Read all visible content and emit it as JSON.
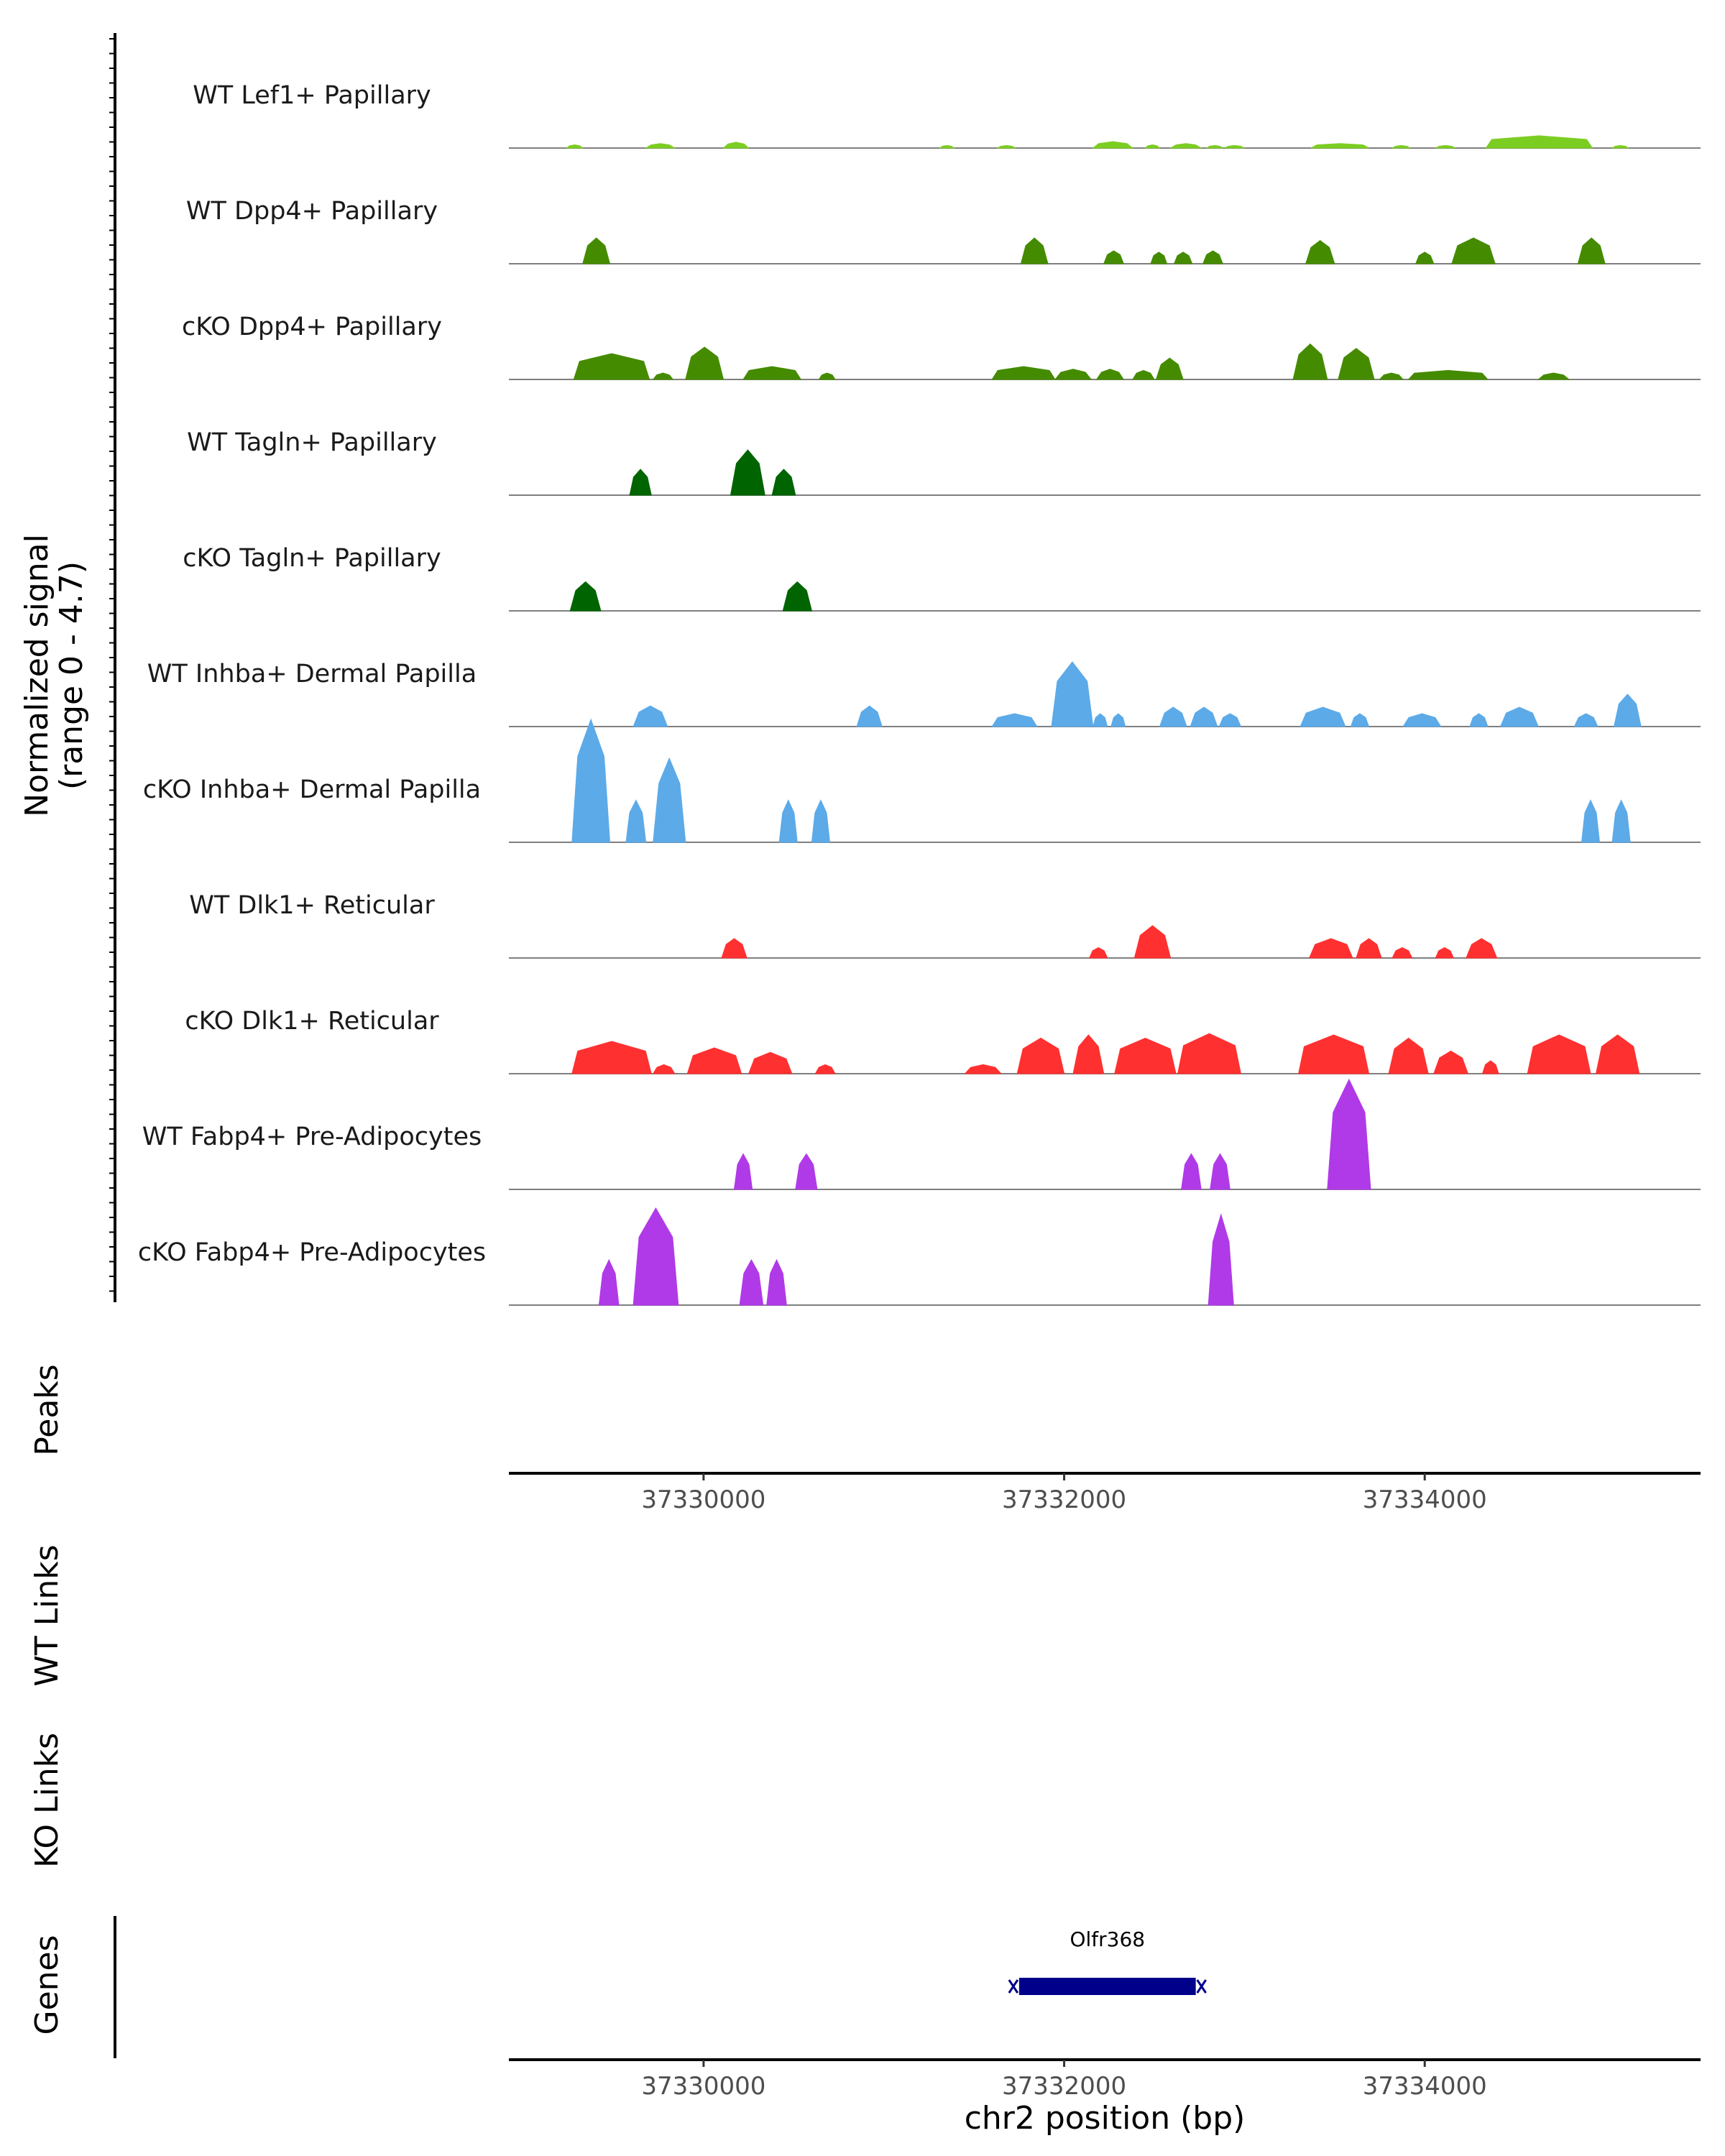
{
  "chart_data": {
    "type": "area",
    "title": "",
    "xlabel": "chr2 position (bp)",
    "ylabel_line1": "Normalized signal",
    "ylabel_line2": "(range 0 - 4.7)",
    "ylim": [
      0,
      4.7
    ],
    "xlim": [
      37328920,
      37335530
    ],
    "xticks": [
      37330000,
      37332000,
      37334000
    ],
    "xtick_labels": [
      "37330000",
      "37332000",
      "37334000"
    ],
    "panel_labels": {
      "peaks": "Peaks",
      "wt_links": "WT Links",
      "ko_links": "KO Links",
      "genes": "Genes"
    },
    "genes": [
      {
        "name": "Olfr368",
        "start": 37331750,
        "end": 37332730,
        "color": "#00008b"
      }
    ],
    "colors": {
      "lef1": "#7ccd22",
      "dpp4": "#458b00",
      "tagln": "#006400",
      "inhba": "#5caae8",
      "dlk1": "#ff3030",
      "fabp4": "#b03ae8"
    },
    "tracks": [
      {
        "name": "WT Lef1+ Papillary",
        "color_key": "lef1",
        "peaks": [
          [
            37329240,
            37329330,
            0.05
          ],
          [
            37329680,
            37329840,
            0.07
          ],
          [
            37330110,
            37330250,
            0.09
          ],
          [
            37331310,
            37331390,
            0.04
          ],
          [
            37331630,
            37331730,
            0.04
          ],
          [
            37332160,
            37332380,
            0.1
          ],
          [
            37332450,
            37332530,
            0.05
          ],
          [
            37332590,
            37332760,
            0.07
          ],
          [
            37332790,
            37332880,
            0.04
          ],
          [
            37332890,
            37333000,
            0.04
          ],
          [
            37333370,
            37333690,
            0.07
          ],
          [
            37333820,
            37333920,
            0.04
          ],
          [
            37334060,
            37334170,
            0.04
          ],
          [
            37334340,
            37334930,
            0.19
          ],
          [
            37335040,
            37335130,
            0.04
          ]
        ]
      },
      {
        "name": "WT Dpp4+ Papillary",
        "color_key": "dpp4",
        "peaks": [
          [
            37329330,
            37329480,
            0.4
          ],
          [
            37331760,
            37331910,
            0.4
          ],
          [
            37332220,
            37332330,
            0.2
          ],
          [
            37332480,
            37332570,
            0.18
          ],
          [
            37332610,
            37332710,
            0.18
          ],
          [
            37332770,
            37332880,
            0.2
          ],
          [
            37333340,
            37333500,
            0.36
          ],
          [
            37333950,
            37334050,
            0.18
          ],
          [
            37334150,
            37334390,
            0.4
          ],
          [
            37334850,
            37335000,
            0.4
          ]
        ]
      },
      {
        "name": "cKO Dpp4+ Papillary",
        "color_key": "dpp4",
        "peaks": [
          [
            37329280,
            37329700,
            0.4
          ],
          [
            37329720,
            37329830,
            0.1
          ],
          [
            37329900,
            37330110,
            0.5
          ],
          [
            37330220,
            37330540,
            0.2
          ],
          [
            37330640,
            37330730,
            0.1
          ],
          [
            37331600,
            37331950,
            0.2
          ],
          [
            37331950,
            37332150,
            0.16
          ],
          [
            37332180,
            37332330,
            0.16
          ],
          [
            37332380,
            37332500,
            0.14
          ],
          [
            37332510,
            37332660,
            0.33
          ],
          [
            37333270,
            37333460,
            0.55
          ],
          [
            37333520,
            37333720,
            0.48
          ],
          [
            37333750,
            37333880,
            0.1
          ],
          [
            37333910,
            37334350,
            0.14
          ],
          [
            37334630,
            37334800,
            0.1
          ]
        ]
      },
      {
        "name": "WT Tagln+ Papillary",
        "color_key": "tagln",
        "peaks": [
          [
            37329590,
            37329710,
            0.4
          ],
          [
            37330150,
            37330340,
            0.7
          ],
          [
            37330380,
            37330510,
            0.4
          ]
        ]
      },
      {
        "name": "cKO Tagln+ Papillary",
        "color_key": "tagln",
        "peaks": [
          [
            37329260,
            37329430,
            0.45
          ],
          [
            37330440,
            37330600,
            0.45
          ]
        ]
      },
      {
        "name": "WT Inhba+ Dermal Papilla",
        "color_key": "inhba",
        "peaks": [
          [
            37329610,
            37329800,
            0.32
          ],
          [
            37330850,
            37330990,
            0.32
          ],
          [
            37331600,
            37331850,
            0.2
          ],
          [
            37331930,
            37332160,
            1.0
          ],
          [
            37332160,
            37332240,
            0.2
          ],
          [
            37332260,
            37332340,
            0.2
          ],
          [
            37332530,
            37332680,
            0.3
          ],
          [
            37332700,
            37332850,
            0.3
          ],
          [
            37332860,
            37332980,
            0.2
          ],
          [
            37333310,
            37333560,
            0.3
          ],
          [
            37333590,
            37333690,
            0.2
          ],
          [
            37333880,
            37334090,
            0.2
          ],
          [
            37334250,
            37334350,
            0.2
          ],
          [
            37334420,
            37334630,
            0.3
          ],
          [
            37334830,
            37334960,
            0.2
          ],
          [
            37335050,
            37335200,
            0.5
          ]
        ]
      },
      {
        "name": "cKO Inhba+ Dermal Papilla",
        "color_key": "inhba",
        "peaks": [
          [
            37329270,
            37329480,
            1.9
          ],
          [
            37329570,
            37329680,
            0.65
          ],
          [
            37329720,
            37329900,
            1.3
          ],
          [
            37330420,
            37330520,
            0.65
          ],
          [
            37330600,
            37330700,
            0.65
          ],
          [
            37334870,
            37334970,
            0.65
          ],
          [
            37335040,
            37335140,
            0.65
          ]
        ]
      },
      {
        "name": "WT Dlk1+ Reticular",
        "color_key": "dlk1",
        "peaks": [
          [
            37330100,
            37330240,
            0.3
          ],
          [
            37332140,
            37332240,
            0.16
          ],
          [
            37332390,
            37332590,
            0.5
          ],
          [
            37333360,
            37333600,
            0.3
          ],
          [
            37333620,
            37333760,
            0.3
          ],
          [
            37333820,
            37333930,
            0.16
          ],
          [
            37334060,
            37334160,
            0.16
          ],
          [
            37334230,
            37334400,
            0.3
          ]
        ]
      },
      {
        "name": "cKO Dlk1+ Reticular",
        "color_key": "dlk1",
        "peaks": [
          [
            37329270,
            37329710,
            0.5
          ],
          [
            37329720,
            37329840,
            0.14
          ],
          [
            37329910,
            37330210,
            0.4
          ],
          [
            37330250,
            37330490,
            0.33
          ],
          [
            37330620,
            37330730,
            0.14
          ],
          [
            37331450,
            37331650,
            0.14
          ],
          [
            37331740,
            37332000,
            0.55
          ],
          [
            37332050,
            37332220,
            0.6
          ],
          [
            37332280,
            37332620,
            0.55
          ],
          [
            37332630,
            37332980,
            0.62
          ],
          [
            37333300,
            37333690,
            0.6
          ],
          [
            37333800,
            37334020,
            0.55
          ],
          [
            37334050,
            37334240,
            0.35
          ],
          [
            37334320,
            37334410,
            0.2
          ],
          [
            37334570,
            37334920,
            0.6
          ],
          [
            37334950,
            37335190,
            0.6
          ]
        ]
      },
      {
        "name": "WT Fabp4+ Pre-Adipocytes",
        "color_key": "fabp4",
        "peaks": [
          [
            37330170,
            37330270,
            0.55
          ],
          [
            37330510,
            37330630,
            0.55
          ],
          [
            37332650,
            37332760,
            0.55
          ],
          [
            37332810,
            37332920,
            0.55
          ],
          [
            37333460,
            37333700,
            1.7
          ]
        ]
      },
      {
        "name": "cKO Fabp4+ Pre-Adipocytes",
        "color_key": "fabp4",
        "peaks": [
          [
            37329420,
            37329530,
            0.7
          ],
          [
            37329610,
            37329860,
            1.5
          ],
          [
            37330200,
            37330330,
            0.7
          ],
          [
            37330350,
            37330460,
            0.7
          ],
          [
            37332800,
            37332940,
            1.4
          ]
        ]
      }
    ]
  }
}
